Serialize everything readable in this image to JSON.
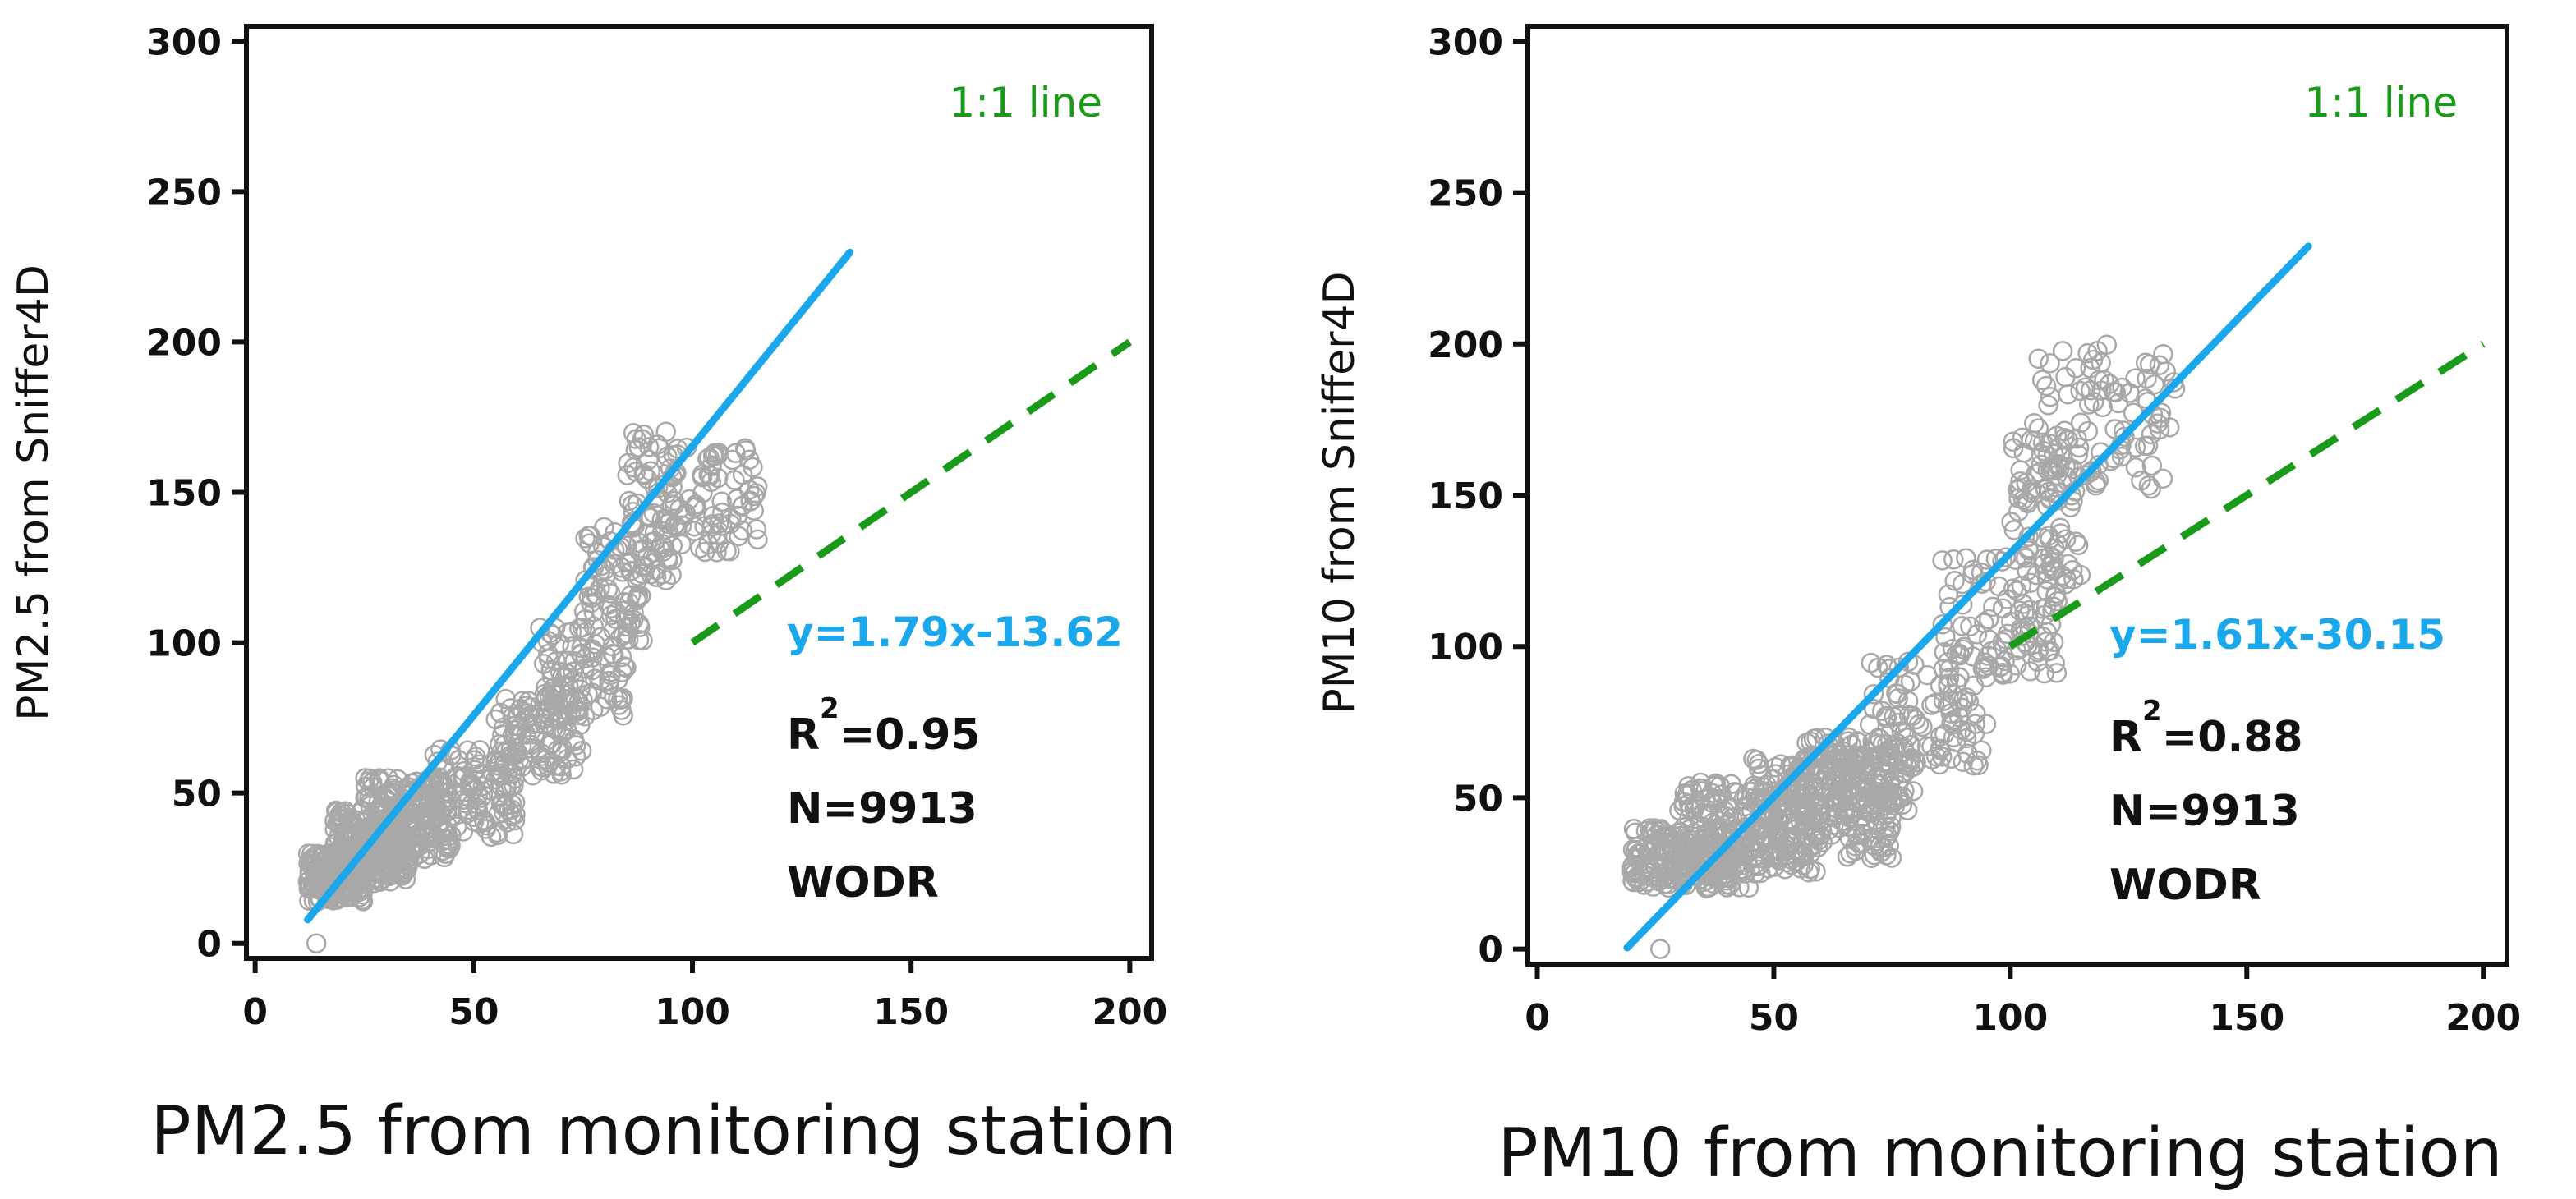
{
  "colors": {
    "points": "#a8a8a8",
    "fit_line": "#1aa7ec",
    "one_to_one": "#1a9a1a",
    "axis": "#111111"
  },
  "chart_data": [
    {
      "type": "scatter",
      "title": "",
      "xlabel": "PM2.5 from monitoring station",
      "ylabel": "PM2.5 from Sniffer4D",
      "xlim": [
        -2,
        205
      ],
      "ylim": [
        -5,
        305
      ],
      "xticks": [
        0,
        50,
        100,
        150,
        200
      ],
      "yticks": [
        0,
        50,
        100,
        150,
        200,
        250,
        300
      ],
      "xtick_labels": [
        "0",
        "50",
        "100",
        "150",
        "200"
      ],
      "ytick_labels": [
        "0",
        "50",
        "100",
        "150",
        "200",
        "250",
        "300"
      ],
      "one_to_one_label": "1:1 line",
      "one_to_one_segment": {
        "x": [
          100,
          200
        ],
        "y": [
          100,
          200
        ]
      },
      "fit": {
        "slope": 1.79,
        "intercept": -13.62,
        "x_range": [
          12,
          136
        ]
      },
      "equation": "y=1.79x-13.62",
      "r2_prefix": "R",
      "r2_sup": "2",
      "r2_value": "=0.95",
      "n_label": "N=9913",
      "method_label": "WODR",
      "point_groups": [
        {
          "x": [
            12,
            25
          ],
          "y": [
            14,
            30
          ],
          "n": 180
        },
        {
          "x": [
            18,
            35
          ],
          "y": [
            20,
            45
          ],
          "n": 200
        },
        {
          "x": [
            25,
            45
          ],
          "y": [
            28,
            55
          ],
          "n": 180
        },
        {
          "x": [
            40,
            60
          ],
          "y": [
            35,
            65
          ],
          "n": 120
        },
        {
          "x": [
            55,
            75
          ],
          "y": [
            55,
            85
          ],
          "n": 100
        },
        {
          "x": [
            65,
            85
          ],
          "y": [
            75,
            105
          ],
          "n": 90
        },
        {
          "x": [
            75,
            90
          ],
          "y": [
            100,
            140
          ],
          "n": 80
        },
        {
          "x": [
            85,
            96
          ],
          "y": [
            120,
            172
          ],
          "n": 70
        },
        {
          "x": [
            95,
            115
          ],
          "y": [
            130,
            165
          ],
          "n": 80
        }
      ],
      "outliers": [
        {
          "x": 14,
          "y": 0
        }
      ]
    },
    {
      "type": "scatter",
      "title": "",
      "xlabel": "PM10 from monitoring station",
      "ylabel": "PM10 from Sniffer4D",
      "xlim": [
        -2,
        205
      ],
      "ylim": [
        -5,
        305
      ],
      "xticks": [
        0,
        50,
        100,
        150,
        200
      ],
      "yticks": [
        0,
        50,
        100,
        150,
        200,
        250,
        300
      ],
      "xtick_labels": [
        "0",
        "50",
        "100",
        "150",
        "200"
      ],
      "ytick_labels": [
        "0",
        "50",
        "100",
        "150",
        "200",
        "250",
        "300"
      ],
      "one_to_one_label": "1:1 line",
      "one_to_one_segment": {
        "x": [
          100,
          200
        ],
        "y": [
          100,
          200
        ]
      },
      "fit": {
        "slope": 1.61,
        "intercept": -30.15,
        "x_range": [
          19,
          163
        ]
      },
      "equation": "y=1.61x-30.15",
      "r2_prefix": "R",
      "r2_sup": "2",
      "r2_value": "=0.88",
      "n_label": "N=9913",
      "method_label": "WODR",
      "point_groups": [
        {
          "x": [
            20,
            45
          ],
          "y": [
            20,
            40
          ],
          "n": 220
        },
        {
          "x": [
            30,
            60
          ],
          "y": [
            25,
            55
          ],
          "n": 220
        },
        {
          "x": [
            45,
            75
          ],
          "y": [
            30,
            65
          ],
          "n": 200
        },
        {
          "x": [
            55,
            80
          ],
          "y": [
            45,
            70
          ],
          "n": 150
        },
        {
          "x": [
            70,
            95
          ],
          "y": [
            60,
            95
          ],
          "n": 100
        },
        {
          "x": [
            85,
            110
          ],
          "y": [
            90,
            130
          ],
          "n": 100
        },
        {
          "x": [
            100,
            115
          ],
          "y": [
            120,
            170
          ],
          "n": 80
        },
        {
          "x": [
            105,
            135
          ],
          "y": [
            150,
            200
          ],
          "n": 100
        }
      ],
      "outliers": [
        {
          "x": 26,
          "y": 0
        }
      ]
    }
  ]
}
